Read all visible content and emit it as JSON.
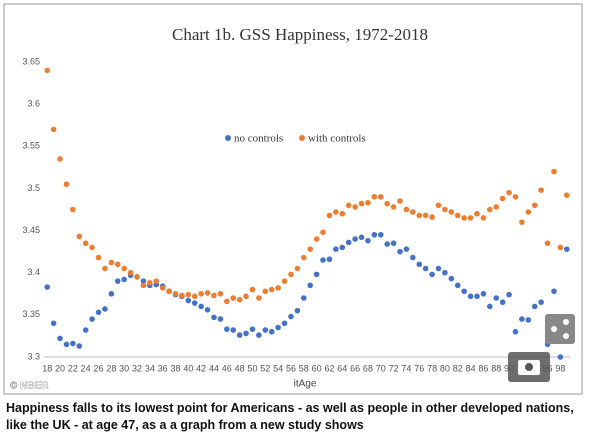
{
  "chart_data": {
    "type": "scatter",
    "title": "Chart 1b.  GSS Happiness, 1972-2018",
    "x_label": "itAge",
    "source": "© NBER",
    "caption": "Happiness falls to its lowest point for Americans - as well as people in other developed nations, like the UK - at age 47, as a a graph from a new study shows",
    "categories": [
      "18",
      null,
      "20",
      null,
      "22",
      null,
      "24",
      null,
      "26",
      null,
      "28",
      null,
      "30",
      null,
      "32",
      null,
      "34",
      null,
      "36",
      null,
      "38",
      null,
      "40",
      null,
      "42",
      null,
      "44",
      null,
      "46",
      null,
      "48",
      null,
      "50",
      null,
      "52",
      null,
      "54",
      null,
      "56",
      null,
      "58",
      null,
      "60",
      null,
      "62",
      null,
      "64",
      null,
      "66",
      null,
      "68",
      null,
      "70",
      null,
      "72",
      null,
      "74",
      null,
      "76",
      null,
      "78",
      null,
      "80",
      null,
      "82",
      null,
      "84",
      null,
      "86",
      null,
      "88",
      null,
      "90",
      null,
      "92",
      null,
      "94",
      null,
      "96",
      null,
      "98",
      null
    ],
    "series": [
      {
        "name": "no controls",
        "color": "#4472c4",
        "values": [
          3.383,
          3.34,
          3.322,
          3.315,
          3.316,
          3.313,
          3.332,
          3.345,
          3.353,
          3.357,
          3.375,
          3.39,
          3.392,
          3.397,
          3.395,
          3.39,
          3.385,
          3.386,
          3.384,
          3.378,
          3.374,
          3.372,
          3.367,
          3.364,
          3.36,
          3.356,
          3.347,
          3.345,
          3.333,
          3.332,
          3.326,
          3.328,
          3.333,
          3.326,
          3.332,
          3.33,
          3.335,
          3.34,
          3.348,
          3.355,
          3.37,
          3.385,
          3.398,
          3.415,
          3.416,
          3.428,
          3.43,
          3.436,
          3.44,
          3.442,
          3.438,
          3.445,
          3.445,
          3.434,
          3.435,
          3.425,
          3.428,
          3.418,
          3.41,
          3.405,
          3.398,
          3.405,
          3.4,
          3.393,
          3.385,
          3.378,
          3.372,
          3.372,
          3.375,
          3.36,
          3.37,
          3.365,
          3.374,
          3.33,
          3.345,
          3.344,
          3.36,
          3.365,
          3.315,
          3.378,
          3.3,
          3.428
        ]
      },
      {
        "name": "with controls",
        "color": "#ed7d31",
        "values": [
          3.64,
          3.57,
          3.535,
          3.505,
          3.475,
          3.443,
          3.435,
          3.43,
          3.418,
          3.405,
          3.412,
          3.41,
          3.405,
          3.4,
          3.395,
          3.385,
          3.388,
          3.39,
          3.382,
          3.378,
          3.375,
          3.373,
          3.374,
          3.372,
          3.375,
          3.376,
          3.373,
          3.375,
          3.366,
          3.37,
          3.368,
          3.372,
          3.38,
          3.37,
          3.378,
          3.38,
          3.382,
          3.39,
          3.398,
          3.405,
          3.418,
          3.428,
          3.44,
          3.448,
          3.468,
          3.472,
          3.47,
          3.48,
          3.478,
          3.482,
          3.483,
          3.49,
          3.49,
          3.482,
          3.478,
          3.485,
          3.475,
          3.472,
          3.468,
          3.468,
          3.466,
          3.48,
          3.475,
          3.472,
          3.468,
          3.465,
          3.465,
          3.47,
          3.465,
          3.475,
          3.478,
          3.488,
          3.495,
          3.49,
          3.46,
          3.472,
          3.48,
          3.498,
          3.435,
          3.52,
          3.43,
          3.492
        ]
      }
    ],
    "ylim": [
      3.3,
      3.65
    ],
    "yticks": [
      3.3,
      3.35,
      3.4,
      3.45,
      3.5,
      3.55,
      3.6,
      3.65
    ],
    "grid": false
  }
}
